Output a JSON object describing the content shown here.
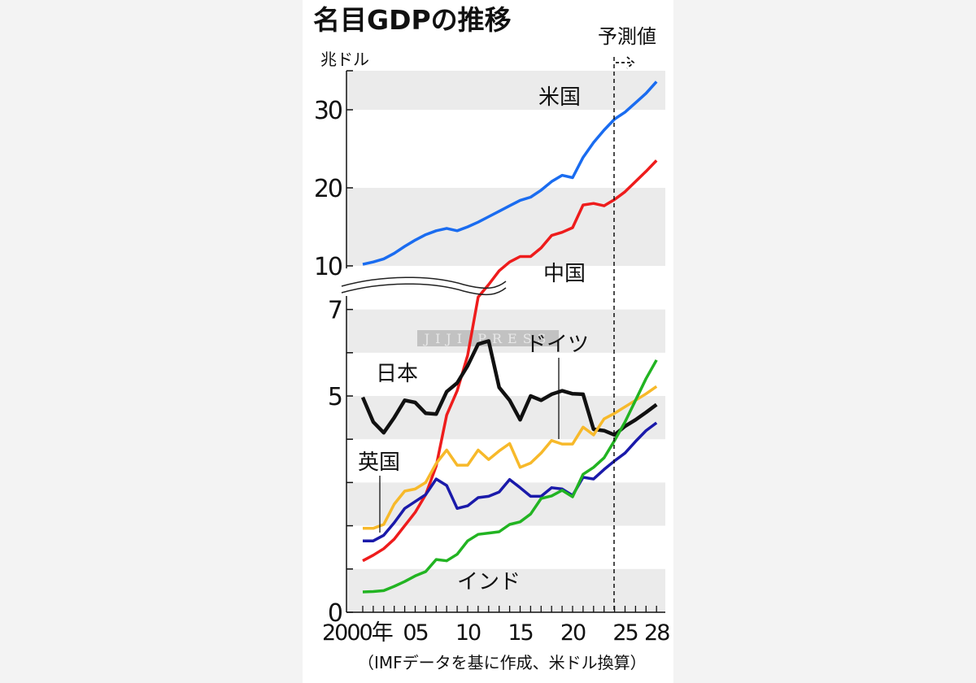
{
  "chart_data": {
    "type": "line",
    "title": "名目GDPの推移",
    "ylabel": "兆ドル",
    "forecast_label": "予測値",
    "forecast_start": 2024,
    "source": "（IMFデータを基に作成、米ドル換算）",
    "watermark": "JIJI PRESS",
    "ylim": [
      0,
      35
    ],
    "y_axis_break": [
      7.2,
      10
    ],
    "y_ticks": [
      0,
      5,
      7,
      10,
      20,
      30
    ],
    "x_tick_labels": [
      {
        "year": 2000,
        "label": "2000年"
      },
      {
        "year": 2005,
        "label": "05"
      },
      {
        "year": 2010,
        "label": "10"
      },
      {
        "year": 2015,
        "label": "15"
      },
      {
        "year": 2020,
        "label": "20"
      },
      {
        "year": 2025,
        "label": "25"
      },
      {
        "year": 2028,
        "label": "28"
      }
    ],
    "x": [
      2000,
      2001,
      2002,
      2003,
      2004,
      2005,
      2006,
      2007,
      2008,
      2009,
      2010,
      2011,
      2012,
      2013,
      2014,
      2015,
      2016,
      2017,
      2018,
      2019,
      2020,
      2021,
      2022,
      2023,
      2024,
      2025,
      2026,
      2027,
      2028
    ],
    "series": [
      {
        "name": "米国",
        "color": "#1a6cf0",
        "values": [
          10.2,
          10.5,
          10.9,
          11.6,
          12.5,
          13.3,
          14.0,
          14.5,
          14.8,
          14.5,
          15.0,
          15.6,
          16.3,
          17.0,
          17.7,
          18.4,
          18.8,
          19.7,
          20.8,
          21.6,
          21.3,
          23.9,
          25.8,
          27.4,
          28.8,
          29.7,
          30.9,
          32.1,
          33.6
        ]
      },
      {
        "name": "中国",
        "color": "#ee1c1c",
        "values": [
          1.19,
          1.32,
          1.47,
          1.69,
          2.0,
          2.31,
          2.72,
          3.38,
          4.56,
          5.12,
          5.94,
          7.5,
          8.5,
          9.6,
          10.5,
          11.2,
          11.2,
          12.3,
          13.9,
          14.3,
          14.9,
          17.8,
          18.0,
          17.7,
          18.5,
          19.5,
          20.8,
          22.1,
          23.5
        ]
      },
      {
        "name": "日本",
        "color": "#111111",
        "values": [
          4.97,
          4.4,
          4.15,
          4.5,
          4.9,
          4.85,
          4.6,
          4.58,
          5.1,
          5.3,
          5.7,
          6.2,
          6.27,
          5.2,
          4.9,
          4.45,
          5.0,
          4.9,
          5.04,
          5.12,
          5.05,
          5.04,
          4.23,
          4.2,
          4.1,
          4.3,
          4.45,
          4.62,
          4.8
        ]
      },
      {
        "name": "ドイツ",
        "color": "#f7b92a",
        "values": [
          1.94,
          1.94,
          2.03,
          2.5,
          2.8,
          2.85,
          3.0,
          3.44,
          3.75,
          3.4,
          3.4,
          3.75,
          3.53,
          3.73,
          3.9,
          3.35,
          3.45,
          3.68,
          3.97,
          3.89,
          3.89,
          4.28,
          4.1,
          4.47,
          4.6,
          4.75,
          4.9,
          5.05,
          5.22
        ]
      },
      {
        "name": "英国",
        "color": "#1a1aaa",
        "values": [
          1.65,
          1.65,
          1.78,
          2.07,
          2.4,
          2.56,
          2.72,
          3.08,
          2.93,
          2.4,
          2.46,
          2.65,
          2.68,
          2.78,
          3.07,
          2.88,
          2.68,
          2.68,
          2.88,
          2.85,
          2.7,
          3.12,
          3.08,
          3.3,
          3.5,
          3.68,
          3.95,
          4.2,
          4.38
        ]
      },
      {
        "name": "インド",
        "color": "#22b422",
        "values": [
          0.47,
          0.48,
          0.5,
          0.6,
          0.71,
          0.84,
          0.94,
          1.22,
          1.19,
          1.34,
          1.65,
          1.8,
          1.83,
          1.86,
          2.03,
          2.09,
          2.27,
          2.63,
          2.69,
          2.82,
          2.67,
          3.19,
          3.35,
          3.57,
          3.97,
          4.4,
          4.9,
          5.4,
          5.83
        ]
      }
    ]
  }
}
